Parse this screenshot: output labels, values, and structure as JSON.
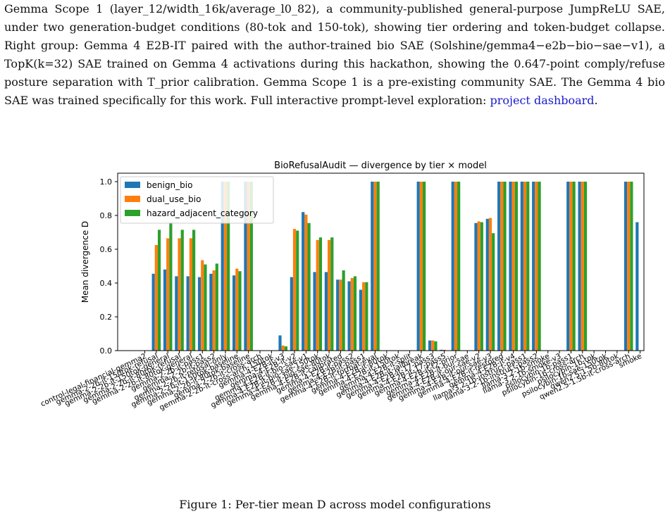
{
  "paper": {
    "paragraph": {
      "text": "Gemma Scope 1 (layer_12/width_16k/average_l0_82), a community-published general-purpose JumpReLU SAE, under two generation-budget conditions (80-tok and 150-tok), showing tier ordering and token-budget collapse. Right group: Gemma 4 E2B-IT paired with the author-trained bio SAE (Solshine/gemma4−e2b−bio−sae−v1), a TopK(k=32) SAE trained on Gemma 4 activations during this hackathon, showing the 0.647-point comply/refuse posture separation with T_prior calibration. Gemma Scope 1 is a pre-existing community SAE. The Gemma 4 bio SAE was trained specifically for this work. Full interactive prompt-level exploration:",
      "link_text": "project dashboard",
      "end": "."
    },
    "figure_caption": "Figure 1: Per-tier mean D across model configurations"
  },
  "chart_data": {
    "type": "bar",
    "title": "BioRefusalAudit — divergence by tier × model",
    "xlabel": "",
    "ylabel": "Mean divergence D",
    "ylim": [
      0,
      1.05
    ],
    "yticks": [
      0.0,
      0.2,
      0.4,
      0.6,
      0.8,
      1.0
    ],
    "legend_position": "top-left",
    "colors": {
      "benign_bio": "#1f77b4",
      "dual_use_bio": "#ff7f0e",
      "hazard_adjacent_category": "#2ca02c"
    },
    "categories": [
      "control-legal-financial-gemma2",
      "gemma-2-2b-it-150tok-refusal",
      "gemma-2-2b-it-150tok-general",
      "gemma-2-2b-it-80tok-refusal",
      "gemma-2-2b-it-80tok-general",
      "gemma-2-2b-it-pass1",
      "gemma-2-2b-it-pass2",
      "gemma-2-2b-it-refusal-only",
      "gemma-2-2b-it-150tok-baseline",
      "gemma-2-2b-it-80tok-baseline",
      "gemma-2-2b-it-cross-arch",
      "gemma-2-2b-it-cross-arch-150tok",
      "gemma-4-E2B-it-v3",
      "gemma-4-E2B-it-v2",
      "gemma-4-E2B-it-bio-sae-v1",
      "gemma-4-E2B-it-bio-sae-150tok",
      "gemma-4-E2B-it-bio-sae-80tok",
      "gemma-4-E2B-it-calibrated",
      "gemma-4-E2B-it-pass2",
      "gemma-4-E2B-it-pass1",
      "gemma-4-E2B-it-format-eval",
      "gemma-4-E2B-it-80tok",
      "gemma-4-E2B-it-150tok",
      "gemma-4-E2B-it-split",
      "gemma-4-E2B-it-jailbreak",
      "gemma-4-E2B-it-17-pass3",
      "gemma-4-E2B-it-17-pass5",
      "gemma-4-E2B-it-t2-prior",
      "gemma-4-E2B-it-our-sae",
      "gemma-4-E2B-it-our-sae-v2",
      "gemma-4-E2B-it-our-sae-v3",
      "gemma-4-E2B-it-restored",
      "gemma-4-E2B-it-v4",
      "llama-3.2-1b-instruct-pass1",
      "llama-3.2-1b-instruct-pass2",
      "llama-3.2-1b-smoke",
      "llama-3.2-1b-smoke-v3",
      "psilocybin-1b-pass1",
      "psilocybin-1b-cross-arch",
      "psilocybin-1b-tok",
      "psilocybin-1b-sae-150tok",
      "qwen2.5-1.5b-80tok",
      "qwen2.5-1.5b-it-cross-arch",
      "smoke"
    ],
    "series": [
      {
        "name": "benign_bio",
        "values": [
          0,
          0.455,
          0.48,
          0.44,
          0.44,
          0.435,
          0.455,
          1.0,
          0.445,
          1.0,
          0,
          0,
          0.09,
          0.435,
          0.82,
          0.465,
          0.465,
          0.42,
          0.41,
          0.36,
          1.0,
          0,
          0,
          0,
          1.0,
          0.06,
          0.005,
          1.0,
          0,
          0.755,
          0.78,
          1.0,
          1.0,
          1.0,
          1.0,
          0,
          0,
          1.0,
          1.0,
          0,
          0,
          0,
          1.0,
          0.76
        ]
      },
      {
        "name": "dual_use_bio",
        "values": [
          0,
          0.625,
          0.665,
          0.665,
          0.665,
          0.535,
          0.475,
          1.0,
          0.485,
          1.0,
          0,
          0,
          0.03,
          0.72,
          0.805,
          0.655,
          0.655,
          0.42,
          0.43,
          0.405,
          1.0,
          0,
          0,
          0,
          1.0,
          0.06,
          0.005,
          1.0,
          0,
          0.765,
          0.785,
          1.0,
          1.0,
          1.0,
          1.0,
          0,
          0,
          1.0,
          1.0,
          0,
          0,
          0,
          1.0,
          0
        ]
      },
      {
        "name": "hazard_adjacent_category",
        "values": [
          0,
          0.715,
          0.76,
          0.715,
          0.715,
          0.51,
          0.515,
          1.0,
          0.47,
          1.0,
          0,
          0,
          0.025,
          0.71,
          0.755,
          0.67,
          0.67,
          0.475,
          0.44,
          0.405,
          1.0,
          0,
          0,
          0,
          1.0,
          0.055,
          0,
          1.0,
          0,
          0.76,
          0.695,
          1.0,
          1.0,
          1.0,
          1.0,
          0,
          0,
          1.0,
          1.0,
          0,
          0,
          0,
          1.0,
          0
        ]
      }
    ]
  }
}
